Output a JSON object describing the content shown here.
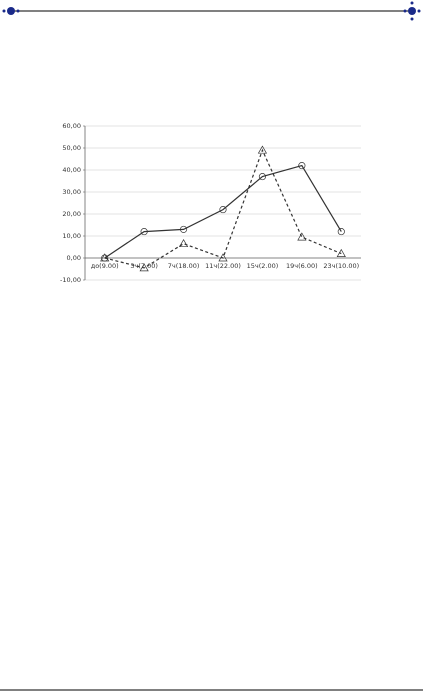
{
  "chart_data": {
    "type": "line",
    "categories": [
      "до(9.00)",
      "3ч(7.00)",
      "7ч(18.00)",
      "11ч(22.00)",
      "15ч(2.00)",
      "19ч(6.00)",
      "23ч(10.00)"
    ],
    "series": [
      {
        "color": "#333333",
        "dash": "solid",
        "marker": "circle",
        "values": [
          0,
          12,
          13,
          22,
          37,
          42,
          12
        ]
      },
      {
        "color": "#333333",
        "dash": "dashed",
        "marker": "triangle",
        "values": [
          0,
          -4.5,
          6.5,
          0,
          49,
          9.5,
          2
        ]
      }
    ],
    "ylim": [
      -10,
      60
    ],
    "yticks": [
      {
        "value": -10,
        "label": "-10,00"
      },
      {
        "value": 0,
        "label": "0,00"
      },
      {
        "value": 10,
        "label": "10,00"
      },
      {
        "value": 20,
        "label": "20,00"
      },
      {
        "value": 30,
        "label": "30,00"
      },
      {
        "value": 40,
        "label": "40,00"
      },
      {
        "value": 50,
        "label": "50,00"
      },
      {
        "value": 60,
        "label": "60,00"
      }
    ],
    "grid": true
  }
}
